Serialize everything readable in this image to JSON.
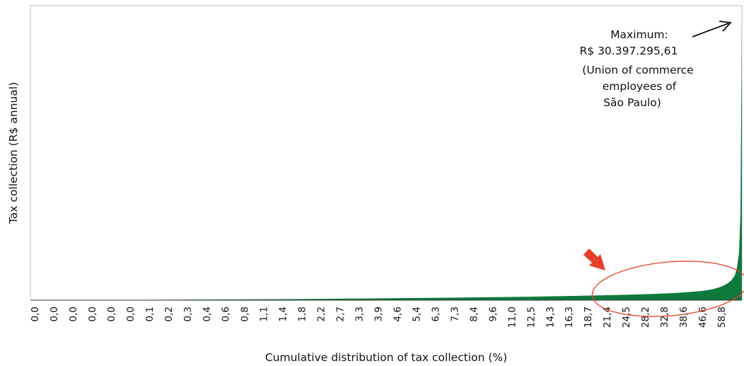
{
  "chart_data": {
    "type": "area",
    "xlabel": "Cumulative distribution of tax collection (%)",
    "ylabel": "Tax collection (R$ annual)",
    "x_tick_labels": [
      "0,0",
      "0,0",
      "0,0",
      "0,0",
      "0,0",
      "0,0",
      "0,1",
      "0,2",
      "0,3",
      "0,4",
      "0,6",
      "0,8",
      "1,1",
      "1,4",
      "1,8",
      "2,2",
      "2,7",
      "3,3",
      "3,9",
      "4,6",
      "5,4",
      "6,3",
      "7,3",
      "8,4",
      "9,6",
      "11,0",
      "12,5",
      "14,3",
      "16,3",
      "18,7",
      "21,4",
      "24,5",
      "28,2",
      "32,8",
      "38,6",
      "46,6",
      "58,8"
    ],
    "y_max": 30397295.61,
    "series": [
      {
        "color": "#0d7a3c",
        "x": [
          0,
          0.05,
          0.1,
          0.15,
          0.2,
          0.25,
          0.3,
          0.35,
          0.4,
          0.45,
          0.5,
          0.55,
          0.6,
          0.65,
          0.7,
          0.75,
          0.8,
          0.85,
          0.88,
          0.9,
          0.92,
          0.94,
          0.95,
          0.96,
          0.97,
          0.975,
          0.98,
          0.985,
          0.99,
          0.993,
          0.996,
          0.998,
          1.0
        ],
        "y": [
          0,
          15000,
          30000,
          40000,
          50000,
          70000,
          90000,
          110000,
          140000,
          170000,
          200000,
          240000,
          280000,
          330000,
          380000,
          450000,
          520000,
          620000,
          700000,
          760000,
          850000,
          980000,
          1080000,
          1220000,
          1450000,
          1620000,
          1850000,
          2150000,
          2700000,
          3500000,
          5200000,
          9500000,
          30397295.61
        ]
      }
    ],
    "annotations": {
      "maximum_text": [
        "Maximum:",
        "R$ 30.397.295,61",
        "(Union of commerce",
        "employees of",
        "São Paulo)"
      ],
      "highlight_color": "#e8402a"
    },
    "grid": false,
    "legend": "none"
  }
}
